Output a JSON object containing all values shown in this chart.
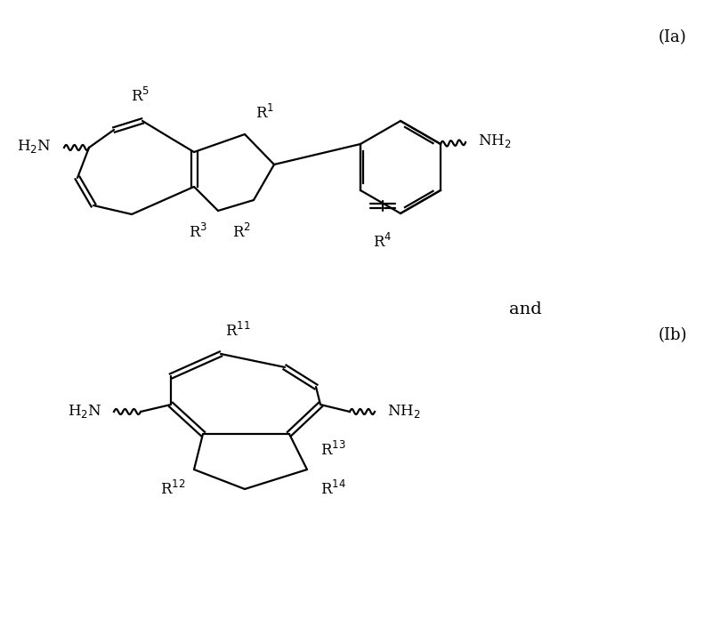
{
  "bg_color": "#ffffff",
  "line_color": "#000000",
  "label_Ia": "(Ia)",
  "label_Ib": "(Ib)",
  "label_and": "and",
  "fontsize": 12
}
